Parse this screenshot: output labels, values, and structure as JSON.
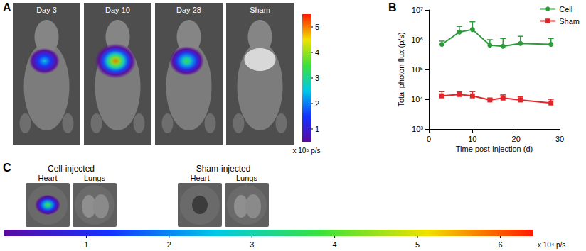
{
  "chart_data": {
    "type": "line",
    "panel_label": "B",
    "x_label": "Time post-injection (d)",
    "y_label": "Total photon flux (p/s)",
    "log": "y",
    "x": [
      3,
      7,
      10,
      14,
      17,
      21,
      28
    ],
    "xlim": [
      0,
      30
    ],
    "xticks": [
      0,
      10,
      20,
      30
    ],
    "ylim": [
      1000,
      10000000
    ],
    "yticks": [
      {
        "value": 1000,
        "label": "10³"
      },
      {
        "value": 10000,
        "label": "10⁴"
      },
      {
        "value": 100000,
        "label": "10⁵"
      },
      {
        "value": 1000000,
        "label": "10⁶"
      },
      {
        "value": 10000000,
        "label": "10⁷"
      }
    ],
    "legend": "upper right",
    "series": [
      {
        "name": "Cell",
        "color": "#2f9a3c",
        "marker": "circle",
        "values": [
          700000,
          1800000,
          2200000,
          650000,
          600000,
          750000,
          700000
        ],
        "error_upper": [
          200000,
          1000000,
          1800000,
          350000,
          500000,
          550000,
          400000
        ]
      },
      {
        "name": "Sham",
        "color": "#e0262b",
        "marker": "square",
        "values": [
          13000,
          14500,
          13000,
          9500,
          11000,
          9500,
          7500
        ],
        "error_upper": [
          5000,
          3000,
          5000,
          1000,
          3000,
          2500,
          2500
        ]
      }
    ]
  },
  "panel_a": {
    "label": "A",
    "images": [
      {
        "title": "Day 3",
        "peak_signal": 2.5
      },
      {
        "title": "Day 10",
        "peak_signal": 5
      },
      {
        "title": "Day 28",
        "peak_signal": 3.5
      },
      {
        "title": "Sham",
        "peak_signal": null
      }
    ],
    "colorbar": {
      "range": [
        0.5,
        5.5
      ],
      "ticks": [
        1,
        2,
        3,
        4,
        5
      ],
      "unit_label": "x 10⁵ p/s"
    }
  },
  "panel_c": {
    "label": "C",
    "groups": [
      {
        "title": "Cell-injected",
        "organs": [
          {
            "name": "Heart",
            "peak_signal": 4
          },
          {
            "name": "Lungs",
            "peak_signal": null
          }
        ]
      },
      {
        "title": "Sham-injected",
        "organs": [
          {
            "name": "Heart",
            "peak_signal": null
          },
          {
            "name": "Lungs",
            "peak_signal": null
          }
        ]
      }
    ],
    "colorbar": {
      "range": [
        0,
        6.4
      ],
      "ticks": [
        1,
        2,
        3,
        4,
        5,
        6
      ],
      "unit_label": "x 10⁴ p/s"
    }
  }
}
